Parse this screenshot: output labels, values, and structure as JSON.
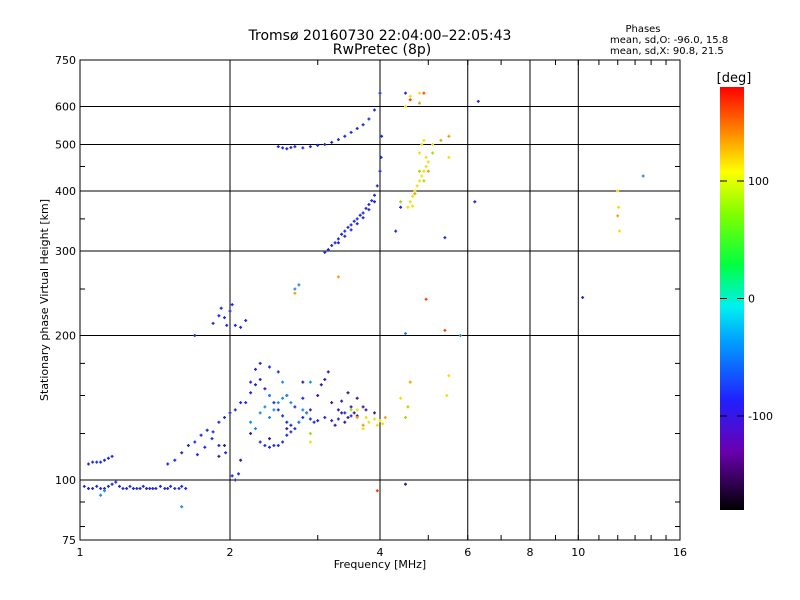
{
  "chart_data": {
    "type": "scatter",
    "title": "Tromsø 20160730 22:04:00–22:05:43",
    "subtitle": "RwPretec (8p)",
    "xlabel": "Frequency [MHz]",
    "ylabel": "Stationary phase Virtual Height [km]",
    "xscale": "log",
    "yscale": "log",
    "xlim": [
      1,
      16
    ],
    "ylim": [
      75,
      750
    ],
    "xticks": [
      1,
      2,
      4,
      6,
      8,
      10,
      16
    ],
    "xtick_labels": [
      "1",
      "2",
      "4",
      "6",
      "8",
      "10",
      "16"
    ],
    "yticks": [
      75,
      100,
      200,
      300,
      400,
      500,
      600,
      750
    ],
    "ytick_labels": [
      "75",
      "100",
      "200",
      "300",
      "400",
      "500",
      "600",
      "750"
    ],
    "grid": true,
    "stats": {
      "heading": "Phases",
      "line1": "mean, sd,O:  -96.0, 15.8",
      "line2": "mean, sd,X:   90.8, 21.5"
    },
    "colorbar": {
      "label": "[deg]",
      "range": [
        -180,
        180
      ],
      "ticks": [
        100,
        0,
        -100
      ],
      "tick_labels": [
        "100",
        "0",
        "-100"
      ]
    },
    "series": [
      {
        "phase": -100,
        "color": "#1e2ae0",
        "points": [
          [
            1.02,
            97
          ],
          [
            1.04,
            96
          ],
          [
            1.06,
            96
          ],
          [
            1.08,
            97
          ],
          [
            1.1,
            96
          ],
          [
            1.12,
            96
          ],
          [
            1.14,
            97
          ],
          [
            1.16,
            98
          ],
          [
            1.18,
            99
          ],
          [
            1.2,
            97
          ],
          [
            1.22,
            96
          ],
          [
            1.24,
            96
          ],
          [
            1.26,
            97
          ],
          [
            1.28,
            96
          ],
          [
            1.3,
            96
          ],
          [
            1.32,
            96
          ],
          [
            1.34,
            97
          ],
          [
            1.36,
            96
          ],
          [
            1.38,
            96
          ],
          [
            1.4,
            96
          ],
          [
            1.42,
            96
          ],
          [
            1.45,
            97
          ],
          [
            1.48,
            96
          ],
          [
            1.5,
            96
          ],
          [
            1.52,
            97
          ],
          [
            1.55,
            96
          ],
          [
            1.58,
            96
          ],
          [
            1.6,
            97
          ],
          [
            1.63,
            96
          ],
          [
            1.04,
            108
          ],
          [
            1.06,
            109
          ],
          [
            1.08,
            109
          ],
          [
            1.1,
            109
          ],
          [
            1.12,
            110
          ],
          [
            1.14,
            111
          ],
          [
            1.16,
            112
          ],
          [
            1.5,
            108
          ],
          [
            1.55,
            110
          ],
          [
            1.6,
            114
          ],
          [
            1.65,
            118
          ],
          [
            1.7,
            120
          ],
          [
            1.75,
            124
          ],
          [
            1.8,
            127
          ],
          [
            1.85,
            126
          ],
          [
            1.9,
            132
          ],
          [
            1.95,
            135
          ],
          [
            2.0,
            138
          ],
          [
            2.05,
            140
          ],
          [
            2.1,
            145
          ],
          [
            1.72,
            113
          ],
          [
            1.78,
            117
          ],
          [
            1.84,
            122
          ],
          [
            1.9,
            118
          ],
          [
            1.96,
            114
          ],
          [
            2.02,
            102
          ],
          [
            2.05,
            100
          ],
          [
            2.08,
            103
          ],
          [
            2.15,
            145
          ],
          [
            2.2,
            152
          ],
          [
            2.25,
            158
          ],
          [
            2.3,
            162
          ],
          [
            2.35,
            155
          ],
          [
            2.4,
            150
          ],
          [
            2.45,
            145
          ],
          [
            2.5,
            140
          ],
          [
            2.55,
            136
          ],
          [
            2.6,
            132
          ],
          [
            2.65,
            130
          ],
          [
            2.7,
            128
          ],
          [
            2.75,
            132
          ],
          [
            2.8,
            135
          ],
          [
            2.85,
            138
          ],
          [
            2.9,
            134
          ],
          [
            2.95,
            132
          ],
          [
            3.0,
            133
          ],
          [
            3.1,
            135
          ],
          [
            3.2,
            133
          ],
          [
            3.3,
            134
          ],
          [
            3.4,
            138
          ],
          [
            3.5,
            136
          ],
          [
            2.3,
            120
          ],
          [
            2.35,
            118
          ],
          [
            2.4,
            117
          ],
          [
            2.45,
            118
          ],
          [
            2.5,
            118
          ],
          [
            2.55,
            120
          ],
          [
            2.6,
            124
          ],
          [
            2.65,
            126
          ],
          [
            2.3,
            175
          ],
          [
            2.25,
            170
          ],
          [
            2.2,
            160
          ],
          [
            2.4,
            172
          ],
          [
            2.5,
            168
          ],
          [
            2.6,
            150
          ],
          [
            2.7,
            142
          ],
          [
            2.8,
            148
          ],
          [
            1.7,
            200
          ],
          [
            1.85,
            212
          ],
          [
            1.9,
            220
          ],
          [
            1.95,
            218
          ],
          [
            2.0,
            225
          ],
          [
            2.02,
            232
          ],
          [
            2.05,
            210
          ],
          [
            2.1,
            208
          ],
          [
            2.15,
            215
          ],
          [
            1.92,
            228
          ],
          [
            1.97,
            210
          ],
          [
            2.5,
            495
          ],
          [
            2.55,
            492
          ],
          [
            2.6,
            490
          ],
          [
            2.65,
            493
          ],
          [
            2.7,
            495
          ],
          [
            2.8,
            492
          ],
          [
            2.9,
            495
          ],
          [
            3.0,
            498
          ],
          [
            3.1,
            500
          ],
          [
            3.2,
            505
          ],
          [
            3.3,
            512
          ],
          [
            3.4,
            520
          ],
          [
            3.5,
            530
          ],
          [
            3.6,
            540
          ],
          [
            3.7,
            550
          ],
          [
            3.8,
            565
          ],
          [
            3.9,
            590
          ],
          [
            4.0,
            640
          ],
          [
            3.1,
            298
          ],
          [
            3.15,
            302
          ],
          [
            3.2,
            308
          ],
          [
            3.25,
            312
          ],
          [
            3.3,
            318
          ],
          [
            3.35,
            325
          ],
          [
            3.4,
            330
          ],
          [
            3.45,
            336
          ],
          [
            3.5,
            340
          ],
          [
            3.55,
            346
          ],
          [
            3.6,
            350
          ],
          [
            3.65,
            356
          ],
          [
            3.7,
            360
          ],
          [
            3.75,
            368
          ],
          [
            3.8,
            375
          ],
          [
            3.85,
            382
          ],
          [
            3.9,
            392
          ],
          [
            3.95,
            410
          ],
          [
            4.0,
            440
          ],
          [
            4.02,
            470
          ],
          [
            4.03,
            520
          ],
          [
            3.3,
            312
          ],
          [
            3.4,
            322
          ],
          [
            3.5,
            332
          ],
          [
            3.6,
            342
          ],
          [
            3.7,
            352
          ],
          [
            3.8,
            366
          ],
          [
            3.9,
            380
          ],
          [
            4.5,
            640
          ],
          [
            4.4,
            370
          ],
          [
            4.3,
            330
          ],
          [
            5.4,
            320
          ],
          [
            6.2,
            380
          ],
          [
            10.2,
            240
          ],
          [
            6.3,
            615
          ]
        ]
      },
      {
        "phase": -130,
        "color": "#3a1a9a",
        "points": [
          [
            2.1,
            110
          ],
          [
            2.2,
            125
          ],
          [
            2.4,
            122
          ],
          [
            2.6,
            128
          ],
          [
            2.8,
            160
          ],
          [
            2.9,
            140
          ],
          [
            3.0,
            150
          ],
          [
            3.05,
            158
          ],
          [
            3.1,
            162
          ],
          [
            3.15,
            168
          ],
          [
            3.2,
            145
          ],
          [
            3.3,
            140
          ],
          [
            3.35,
            138
          ],
          [
            3.4,
            132
          ],
          [
            3.45,
            135
          ],
          [
            3.5,
            142
          ],
          [
            3.55,
            138
          ],
          [
            3.6,
            136
          ],
          [
            3.25,
            130
          ],
          [
            3.35,
            146
          ],
          [
            3.45,
            152
          ],
          [
            3.6,
            148
          ],
          [
            3.7,
            142
          ],
          [
            3.75,
            140
          ],
          [
            3.9,
            138
          ],
          [
            1.9,
            112
          ],
          [
            1.95,
            118
          ],
          [
            4.5,
            98
          ]
        ]
      },
      {
        "phase": -80,
        "color": "#1a8ae8",
        "points": [
          [
            1.1,
            93
          ],
          [
            1.12,
            95
          ],
          [
            1.6,
            88
          ],
          [
            2.4,
            135
          ],
          [
            2.45,
            140
          ],
          [
            2.5,
            145
          ],
          [
            2.55,
            148
          ],
          [
            2.6,
            150
          ],
          [
            2.65,
            145
          ],
          [
            2.35,
            142
          ],
          [
            2.4,
            150
          ],
          [
            2.55,
            160
          ],
          [
            2.75,
            132
          ],
          [
            2.8,
            140
          ],
          [
            2.85,
            138
          ],
          [
            2.2,
            132
          ],
          [
            2.25,
            128
          ],
          [
            2.3,
            138
          ],
          [
            2.7,
            250
          ],
          [
            2.75,
            255
          ],
          [
            4.5,
            202
          ],
          [
            5.8,
            200
          ],
          [
            13.5,
            430
          ],
          [
            2.9,
            160
          ]
        ]
      },
      {
        "phase": 95,
        "color": "#f0e000",
        "points": [
          [
            3.8,
            132
          ],
          [
            3.9,
            134
          ],
          [
            3.95,
            130
          ],
          [
            4.0,
            133
          ],
          [
            4.05,
            131
          ],
          [
            3.7,
            128
          ],
          [
            3.75,
            135
          ],
          [
            4.6,
            380
          ],
          [
            4.65,
            390
          ],
          [
            4.7,
            400
          ],
          [
            4.75,
            410
          ],
          [
            4.8,
            420
          ],
          [
            4.85,
            430
          ],
          [
            4.9,
            440
          ],
          [
            4.95,
            450
          ],
          [
            5.0,
            460
          ],
          [
            4.8,
            480
          ],
          [
            4.85,
            500
          ],
          [
            4.9,
            510
          ],
          [
            4.95,
            470
          ],
          [
            4.5,
            600
          ],
          [
            4.6,
            630
          ],
          [
            4.8,
            640
          ],
          [
            5.1,
            500
          ],
          [
            5.5,
            470
          ],
          [
            4.55,
            370
          ],
          [
            4.65,
            372
          ],
          [
            5.5,
            165
          ],
          [
            5.45,
            150
          ],
          [
            12.0,
            400
          ],
          [
            12.05,
            370
          ],
          [
            12.1,
            330
          ],
          [
            4.4,
            148
          ],
          [
            2.9,
            120
          ],
          [
            3.6,
            140
          ]
        ]
      },
      {
        "phase": 120,
        "color": "#f0a000",
        "points": [
          [
            2.7,
            245
          ],
          [
            3.3,
            265
          ],
          [
            3.6,
            135
          ],
          [
            4.7,
            395
          ],
          [
            5.0,
            440
          ],
          [
            5.3,
            510
          ],
          [
            5.5,
            520
          ],
          [
            4.6,
            160
          ],
          [
            12.0,
            355
          ],
          [
            4.8,
            610
          ],
          [
            3.7,
            130
          ],
          [
            4.1,
            135
          ]
        ]
      },
      {
        "phase": 150,
        "color": "#ff4000",
        "points": [
          [
            4.95,
            238
          ],
          [
            5.4,
            205
          ],
          [
            3.95,
            95
          ],
          [
            4.9,
            640
          ],
          [
            4.6,
            620
          ]
        ]
      },
      {
        "phase": 60,
        "color": "#a0e000",
        "points": [
          [
            4.5,
            135
          ],
          [
            4.55,
            142
          ],
          [
            4.8,
            440
          ],
          [
            4.9,
            420
          ],
          [
            5.1,
            480
          ],
          [
            3.5,
            140
          ],
          [
            2.9,
            125
          ],
          [
            4.4,
            380
          ]
        ]
      }
    ]
  }
}
